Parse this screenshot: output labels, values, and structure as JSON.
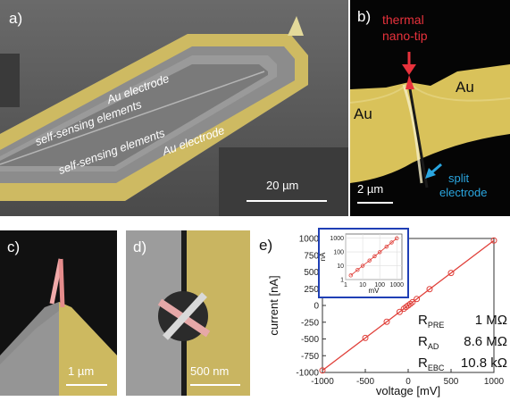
{
  "panel_a": {
    "label": "a)",
    "annotations": {
      "au_top": "Au electrode",
      "sse_1": "self-sensing elements",
      "sse_2": "self-sensing elements",
      "au_bottom": "Au electrode"
    },
    "scale": "20 µm"
  },
  "panel_b": {
    "label": "b)",
    "tip_label_1": "thermal",
    "tip_label_2": "nano-tip",
    "au_left": "Au",
    "au_right": "Au",
    "split_1": "split",
    "split_2": "electrode",
    "scale": "2 µm"
  },
  "panel_c": {
    "label": "c)",
    "scale": "1 µm"
  },
  "panel_d": {
    "label": "d)",
    "scale": "500 nm"
  },
  "panel_e": {
    "label": "e)",
    "legend": [
      {
        "r": "R",
        "sub": "PRE",
        "value": "1 MΩ"
      },
      {
        "r": "R",
        "sub": "AD",
        "value": "8.6 MΩ"
      },
      {
        "r": "R",
        "sub": "EBC",
        "value": "10.8 kΩ"
      }
    ]
  },
  "colors": {
    "gold": "#d9c25a",
    "tip_red": "#e8323c",
    "split_blue": "#2aa6e0",
    "inset_border": "#1f3fb5",
    "line": "#e0403a"
  },
  "chart_data": [
    {
      "type": "line",
      "xlabel": "voltage [mV]",
      "ylabel": "current [nA]",
      "xlim": [
        -1000,
        1000
      ],
      "ylim": [
        -1000,
        1000
      ],
      "xticks": [
        -1000,
        -500,
        0,
        500,
        1000
      ],
      "yticks": [
        -1000,
        -750,
        -500,
        -250,
        0,
        250,
        500,
        750,
        1000
      ],
      "grid": false,
      "series": [
        {
          "x": [
            -1000,
            -500,
            -250,
            -100,
            -50,
            -25,
            0,
            25,
            50,
            100,
            250,
            500,
            1000
          ],
          "y": [
            -970,
            -485,
            -243,
            -97,
            -49,
            -24,
            0,
            24,
            49,
            97,
            243,
            485,
            970
          ]
        }
      ]
    },
    {
      "type": "scatter",
      "scale": "log",
      "xlabel": "mV",
      "ylabel": "nA",
      "xlim": [
        1,
        2000
      ],
      "ylim": [
        1,
        2000
      ],
      "xticks": [
        1,
        10,
        100,
        1000
      ],
      "xtick_labels": [
        "1",
        "10",
        "100",
        "1000"
      ],
      "yticks": [
        1,
        10,
        100,
        1000
      ],
      "ytick_labels": [
        "1",
        "10",
        "100",
        "1000"
      ],
      "series": [
        {
          "x": [
            2,
            5,
            10,
            25,
            50,
            100,
            250,
            500,
            1000
          ],
          "y": [
            2,
            5,
            10,
            24,
            49,
            97,
            243,
            485,
            970
          ]
        }
      ]
    }
  ]
}
